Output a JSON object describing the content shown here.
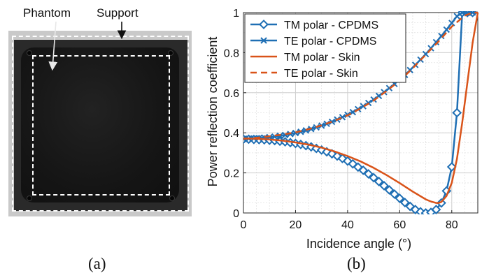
{
  "panel_a": {
    "label_phantom": "Phantom",
    "label_support": "Support",
    "caption": "(a)"
  },
  "panel_b": {
    "caption": "(b)"
  },
  "colors": {
    "blue": "#1f6fb4",
    "orange": "#d95319"
  },
  "chart_data": {
    "type": "line",
    "xlabel": "Incidence angle (°)",
    "ylabel": "Power reflection coefficient",
    "xlim": [
      0,
      90
    ],
    "ylim": [
      0,
      1
    ],
    "xticks": [
      0,
      20,
      40,
      60,
      80
    ],
    "yticks": [
      0,
      0.2,
      0.4,
      0.6,
      0.8,
      1
    ],
    "xtick_labels": [
      "0",
      "20",
      "40",
      "60",
      "80"
    ],
    "ytick_labels": [
      "0",
      "0.2",
      "0.4",
      "0.6",
      "0.8",
      "1"
    ],
    "grid": true,
    "legend_position": "top-left",
    "series": [
      {
        "name": "TM polar - CPDMS",
        "color": "#1f6fb4",
        "style": "solid-diamond",
        "x": [
          0,
          2,
          4,
          6,
          8,
          10,
          12,
          14,
          16,
          18,
          20,
          22,
          24,
          26,
          28,
          30,
          32,
          34,
          36,
          38,
          40,
          42,
          44,
          46,
          48,
          50,
          52,
          54,
          56,
          58,
          60,
          62,
          64,
          66,
          68,
          70,
          72,
          74,
          76,
          78,
          80,
          82,
          84,
          86,
          88,
          90
        ],
        "y": [
          0.368,
          0.368,
          0.367,
          0.366,
          0.365,
          0.363,
          0.361,
          0.358,
          0.355,
          0.351,
          0.347,
          0.342,
          0.336,
          0.33,
          0.322,
          0.314,
          0.305,
          0.295,
          0.284,
          0.272,
          0.259,
          0.245,
          0.229,
          0.213,
          0.195,
          0.176,
          0.157,
          0.136,
          0.115,
          0.094,
          0.073,
          0.052,
          0.033,
          0.017,
          0.006,
          0.0,
          0.003,
          0.017,
          0.05,
          0.11,
          0.23,
          0.5,
          1.0,
          1.0,
          1.0,
          1.0
        ]
      },
      {
        "name": "TE polar - CPDMS",
        "color": "#1f6fb4",
        "style": "solid-x",
        "x": [
          0,
          2,
          4,
          6,
          8,
          10,
          12,
          14,
          16,
          18,
          20,
          22,
          24,
          26,
          28,
          30,
          32,
          34,
          36,
          38,
          40,
          42,
          44,
          46,
          48,
          50,
          52,
          54,
          56,
          58,
          60,
          62,
          64,
          66,
          68,
          70,
          72,
          74,
          76,
          78,
          80,
          82,
          84,
          86,
          88,
          90
        ],
        "y": [
          0.37,
          0.371,
          0.372,
          0.374,
          0.376,
          0.378,
          0.381,
          0.385,
          0.389,
          0.394,
          0.399,
          0.405,
          0.412,
          0.419,
          0.427,
          0.436,
          0.445,
          0.455,
          0.466,
          0.478,
          0.49,
          0.503,
          0.518,
          0.533,
          0.549,
          0.566,
          0.584,
          0.603,
          0.623,
          0.644,
          0.666,
          0.689,
          0.713,
          0.739,
          0.765,
          0.793,
          0.822,
          0.852,
          0.883,
          0.915,
          0.948,
          0.982,
          1.0,
          1.0,
          1.0,
          1.0
        ]
      },
      {
        "name": "TM polar - Skin",
        "color": "#d95319",
        "style": "solid",
        "x": [
          0,
          5,
          10,
          15,
          20,
          25,
          30,
          35,
          40,
          45,
          50,
          55,
          60,
          65,
          70,
          72,
          74,
          75,
          76,
          78,
          80,
          82,
          84,
          86,
          88,
          90
        ],
        "y": [
          0.372,
          0.37,
          0.367,
          0.361,
          0.352,
          0.341,
          0.326,
          0.307,
          0.284,
          0.257,
          0.225,
          0.189,
          0.149,
          0.107,
          0.068,
          0.057,
          0.05,
          0.05,
          0.055,
          0.085,
          0.15,
          0.27,
          0.45,
          0.65,
          0.85,
          1.0
        ]
      },
      {
        "name": "TE polar - Skin",
        "color": "#d95319",
        "style": "dashed",
        "x": [
          0,
          5,
          10,
          15,
          20,
          25,
          30,
          35,
          40,
          45,
          50,
          55,
          60,
          65,
          70,
          75,
          80,
          85,
          88,
          90
        ],
        "y": [
          0.37,
          0.375,
          0.383,
          0.391,
          0.402,
          0.418,
          0.437,
          0.46,
          0.487,
          0.522,
          0.561,
          0.609,
          0.66,
          0.722,
          0.79,
          0.857,
          0.93,
          0.985,
          1.0,
          1.0
        ]
      }
    ]
  }
}
